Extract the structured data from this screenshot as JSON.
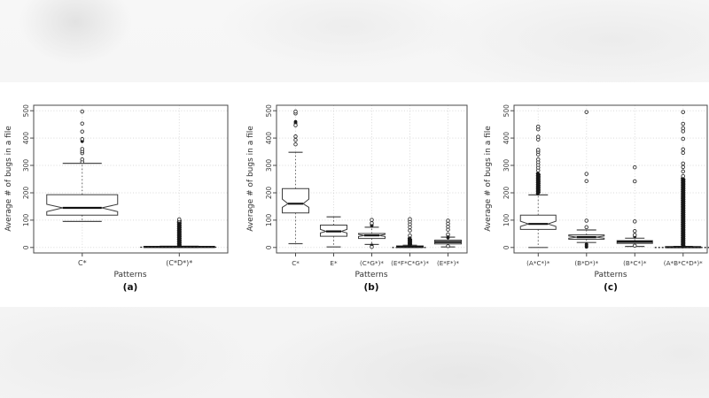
{
  "page": {
    "background": "#f4f4f4",
    "figure_background": "#ffffff"
  },
  "colors": {
    "grid": "#d9d9d9",
    "plot_border": "#4a4a4a",
    "box_stroke": "#3d3d3d",
    "median": "#111111",
    "dense_fill": "#161616",
    "text": "#3a3a3a"
  },
  "chart_data": [
    {
      "type": "boxplot",
      "caption": "(a)",
      "xlabel": "Patterns",
      "ylabel": "Average # of bugs in a file",
      "ylim": [
        0,
        500
      ],
      "yticks": [
        0,
        100,
        200,
        300,
        400,
        500
      ],
      "grid": "dotted",
      "categories": [
        "C*",
        "(C*D*)*"
      ],
      "boxes": [
        {
          "category": "C*",
          "q1": 118,
          "median": 145,
          "q3": 193,
          "notch": [
            131,
            158
          ],
          "whisker_low": 95,
          "whisker_high": 308,
          "outliers": [
            313,
            322,
            345,
            352,
            360,
            396,
            424,
            453,
            497
          ],
          "outliers_filled": [
            388,
            391
          ]
        },
        {
          "category": "(C*D*)*",
          "q1": 0,
          "median": 2,
          "q3": 4,
          "whisker_low": 0,
          "whisker_high": 5,
          "dense_outliers": [
            5,
            100
          ],
          "outliers": [
            98,
            103
          ],
          "flat_dash": {
            "y": 1,
            "halfwidth": 44
          }
        }
      ]
    },
    {
      "type": "boxplot",
      "caption": "(b)",
      "xlabel": "Patterns",
      "ylabel": "Average # of bugs in a file",
      "ylim": [
        0,
        500
      ],
      "yticks": [
        0,
        100,
        200,
        300,
        400,
        500
      ],
      "grid": "dotted",
      "categories": [
        "C*",
        "E*",
        "(C*G*)*",
        "(E*F*C*G*)*",
        "(E*F*)*"
      ],
      "boxes": [
        {
          "category": "C*",
          "q1": 126,
          "median": 160,
          "q3": 215,
          "notch": [
            147,
            177
          ],
          "whisker_low": 14,
          "whisker_high": 348,
          "outliers": [
            377,
            393,
            406,
            447,
            490,
            497
          ],
          "outliers_filled": [
            455,
            460
          ]
        },
        {
          "category": "E*",
          "q1": 41,
          "median": 59,
          "q3": 82,
          "notch": [
            53,
            66
          ],
          "whisker_low": 2,
          "whisker_high": 112,
          "outliers": [],
          "outliers_filled": []
        },
        {
          "category": "(C*G*)*",
          "q1": 33,
          "median": 44,
          "q3": 51,
          "notch": [
            40,
            48
          ],
          "whisker_low": 11,
          "whisker_high": 74,
          "outliers": [
            2,
            89,
            101
          ],
          "outliers_filled": [
            8,
            80,
            84
          ]
        },
        {
          "category": "(E*F*C*G*)*",
          "q1": 0,
          "median": 2,
          "q3": 6,
          "whisker_low": 0,
          "whisker_high": 8,
          "dense_outliers": [
            8,
            32
          ],
          "outliers": [
            44,
            62,
            74,
            85,
            95,
            104
          ],
          "outliers_filled": [
            36
          ],
          "flat_dash": {
            "y": 0,
            "halfwidth": 20
          }
        },
        {
          "category": "(E*F*)*",
          "q1": 13,
          "median": 20,
          "q3": 27,
          "whisker_low": 2,
          "whisker_high": 38,
          "outliers": [
            5,
            48,
            65,
            76,
            87,
            98
          ],
          "outliers_filled": [
            36,
            44
          ]
        }
      ]
    },
    {
      "type": "boxplot",
      "caption": "(c)",
      "xlabel": "Patterns",
      "ylabel": "Average # of bugs in a file",
      "ylim": [
        0,
        500
      ],
      "yticks": [
        0,
        100,
        200,
        300,
        400,
        500
      ],
      "grid": "dotted",
      "categories": [
        "(A*C*)*",
        "(B*D*)*",
        "(B*C*)*",
        "(A*B*C*D*)*"
      ],
      "boxes": [
        {
          "category": "(A*C*)*",
          "q1": 66,
          "median": 86,
          "q3": 118,
          "notch": [
            77,
            96
          ],
          "whisker_low": 0,
          "whisker_high": 192,
          "dense_outliers": [
            198,
            270
          ],
          "outliers": [
            282,
            292,
            302,
            312,
            322,
            340,
            350,
            357,
            395,
            405,
            432,
            442
          ],
          "outliers_filled": []
        },
        {
          "category": "(B*D*)*",
          "q1": 30,
          "median": 38,
          "q3": 46,
          "notch": [
            34,
            42
          ],
          "whisker_low": 18,
          "whisker_high": 64,
          "outliers": [
            74,
            98,
            243,
            269,
            495
          ],
          "outliers_filled": [
            2,
            5,
            9,
            12
          ]
        },
        {
          "category": "(B*C*)*",
          "q1": 15,
          "median": 21,
          "q3": 25,
          "whisker_low": 4,
          "whisker_high": 34,
          "outliers": [
            7,
            46,
            60,
            95,
            242,
            293
          ],
          "outliers_filled": [
            40
          ]
        },
        {
          "category": "(A*B*C*D*)*",
          "q1": 0,
          "median": 1,
          "q3": 3,
          "whisker_low": 0,
          "whisker_high": 4,
          "dense_outliers": [
            4,
            252
          ],
          "outliers": [
            261,
            278,
            294,
            307,
            346,
            359,
            397,
            425,
            436,
            452,
            495
          ],
          "flat_dash": {
            "y": 0,
            "halfwidth": 32
          }
        }
      ]
    }
  ]
}
